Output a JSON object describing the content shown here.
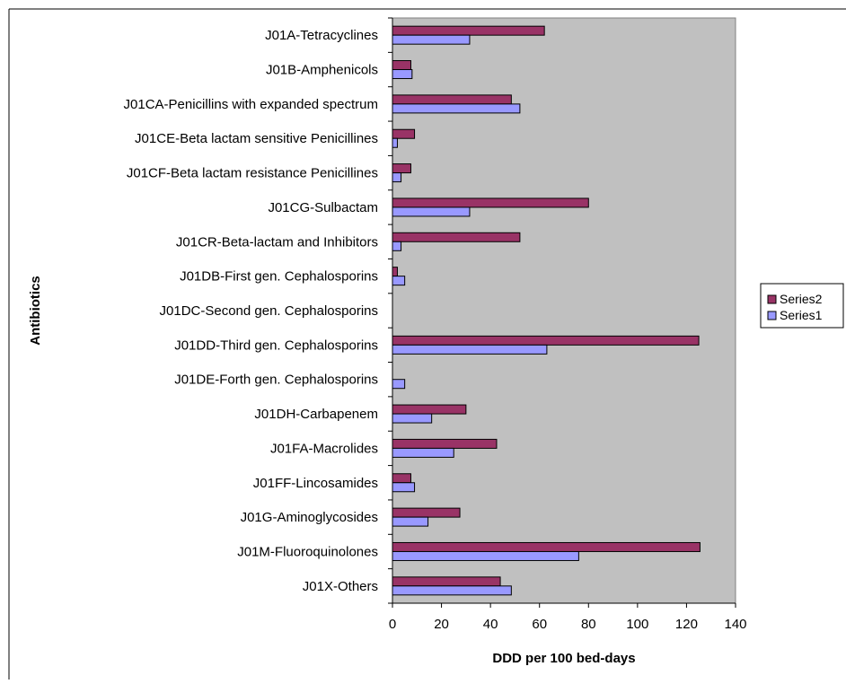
{
  "chart_data": {
    "type": "bar",
    "orientation": "horizontal",
    "title": "",
    "xlabel": "DDD per 100 bed-days",
    "ylabel": "Antibiotics",
    "xlim": [
      0,
      140
    ],
    "x_ticks": [
      0,
      20,
      40,
      60,
      80,
      100,
      120,
      140
    ],
    "grid": false,
    "plot_background": "#c0c0c0",
    "legend_position": "right",
    "categories": [
      "J01A-Tetracyclines",
      "J01B-Amphenicols",
      "J01CA-Penicillins with expanded spectrum",
      "J01CE-Beta lactam sensitive Penicillines",
      "J01CF-Beta lactam resistance Penicillines",
      "J01CG-Sulbactam",
      "J01CR-Beta-lactam and Inhibitors",
      "J01DB-First gen. Cephalosporins",
      "J01DC-Second gen. Cephalosporins",
      "J01DD-Third gen. Cephalosporins",
      "J01DE-Forth gen. Cephalosporins",
      "J01DH-Carbapenem",
      "J01FA-Macrolides",
      "J01FF-Lincosamides",
      "J01G-Aminoglycosides",
      "J01M-Fluoroquinolones",
      "J01X-Others"
    ],
    "series": [
      {
        "name": "Series2",
        "color": "#993366",
        "values": [
          62,
          7.5,
          48.5,
          9,
          7.5,
          80,
          52,
          2,
          0,
          125,
          0,
          30,
          42.5,
          7.5,
          27.5,
          125.5,
          44
        ]
      },
      {
        "name": "Series1",
        "color": "#9999ff",
        "values": [
          31.5,
          8,
          52,
          2,
          3.5,
          31.5,
          3.5,
          5,
          0,
          63,
          5,
          16,
          25,
          9,
          14.5,
          76,
          48.5
        ]
      }
    ]
  }
}
